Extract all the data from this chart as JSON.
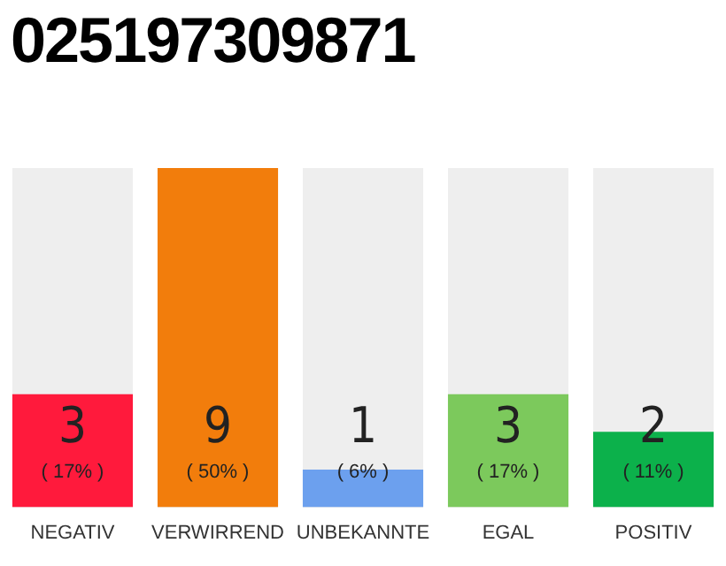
{
  "chart_data": {
    "type": "bar",
    "title": "025197309871",
    "categories": [
      "NEGATIV",
      "VERWIRREND",
      "UNBEKANNTE",
      "EGAL",
      "POSITIV"
    ],
    "values": [
      3,
      9,
      1,
      3,
      2
    ],
    "colors": [
      "#ff1a3c",
      "#f27d0c",
      "#6ca0ee",
      "#7cc95c",
      "#0cb14b"
    ],
    "ylim": [
      0,
      9
    ],
    "data_labels": true,
    "grid": false,
    "legend": false,
    "annotations": [
      {
        "text": "( 17% )",
        "x": "NEGATIV",
        "y": 0
      },
      {
        "text": "( 50% )",
        "x": "VERWIRREND",
        "y": 0
      },
      {
        "text": "( 6% )",
        "x": "UNBEKANNTE",
        "y": 0
      },
      {
        "text": "( 17% )",
        "x": "EGAL",
        "y": 0
      },
      {
        "text": "( 11% )",
        "x": "POSITIV",
        "y": 0
      }
    ]
  }
}
